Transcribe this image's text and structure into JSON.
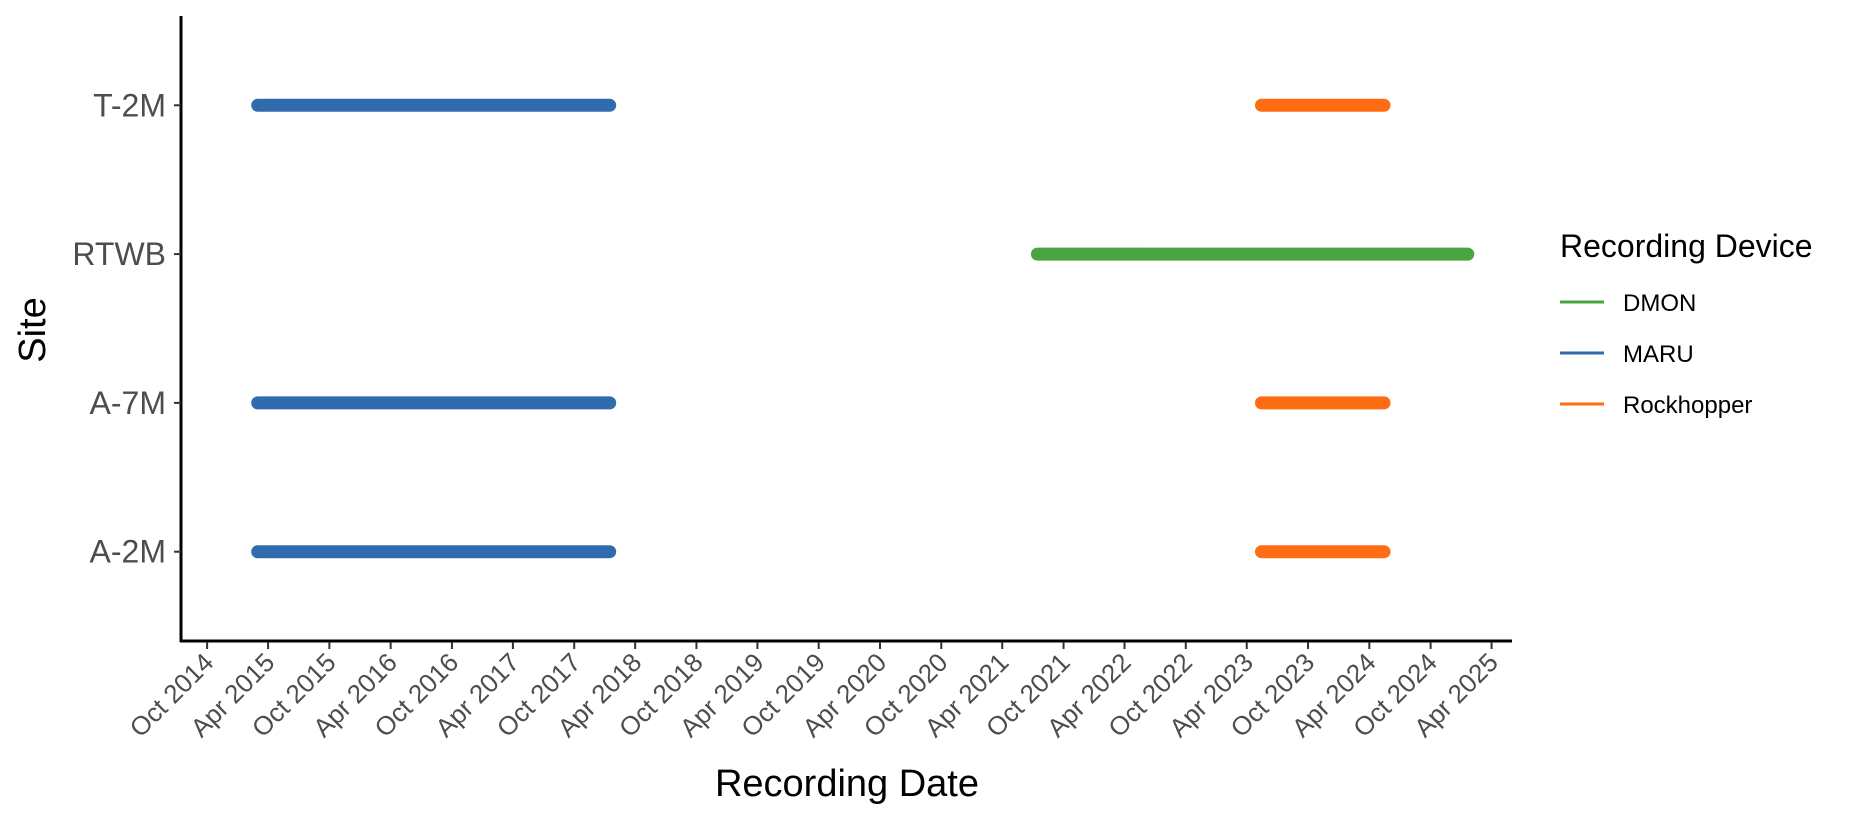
{
  "chart_data": {
    "type": "timeline",
    "xlabel": "Recording Date",
    "ylabel": "Site",
    "sites": [
      "A-2M",
      "A-7M",
      "RTWB",
      "T-2M"
    ],
    "x_ticks": [
      "Oct 2014",
      "Apr 2015",
      "Oct 2015",
      "Apr 2016",
      "Oct 2016",
      "Apr 2017",
      "Oct 2017",
      "Apr 2018",
      "Oct 2018",
      "Apr 2019",
      "Oct 2019",
      "Apr 2020",
      "Oct 2020",
      "Apr 2021",
      "Oct 2021",
      "Apr 2022",
      "Oct 2022",
      "Apr 2023",
      "Oct 2023",
      "Apr 2024",
      "Oct 2024",
      "Apr 2025"
    ],
    "xlim": [
      "2014-07-15",
      "2025-06-01"
    ],
    "grid": false,
    "legend": {
      "title": "Recording Device",
      "position": "right",
      "entries": [
        {
          "name": "DMON",
          "color": "#4aa441"
        },
        {
          "name": "MARU",
          "color": "#2f6bad"
        },
        {
          "name": "Rockhopper",
          "color": "#ff6d12"
        }
      ]
    },
    "series": [
      {
        "name": "MARU",
        "color": "#2f6bad",
        "segments": [
          {
            "site": "T-2M",
            "start": "2015-03-01",
            "end": "2018-01-15"
          },
          {
            "site": "A-7M",
            "start": "2015-03-01",
            "end": "2018-01-15"
          },
          {
            "site": "A-2M",
            "start": "2015-03-01",
            "end": "2018-01-15"
          }
        ]
      },
      {
        "name": "DMON",
        "color": "#4aa441",
        "segments": [
          {
            "site": "RTWB",
            "start": "2021-07-15",
            "end": "2025-01-20"
          }
        ]
      },
      {
        "name": "Rockhopper",
        "color": "#ff6d12",
        "segments": [
          {
            "site": "T-2M",
            "start": "2023-05-15",
            "end": "2024-05-15"
          },
          {
            "site": "A-7M",
            "start": "2023-05-15",
            "end": "2024-05-15"
          },
          {
            "site": "A-2M",
            "start": "2023-05-15",
            "end": "2024-05-15"
          }
        ]
      }
    ]
  }
}
